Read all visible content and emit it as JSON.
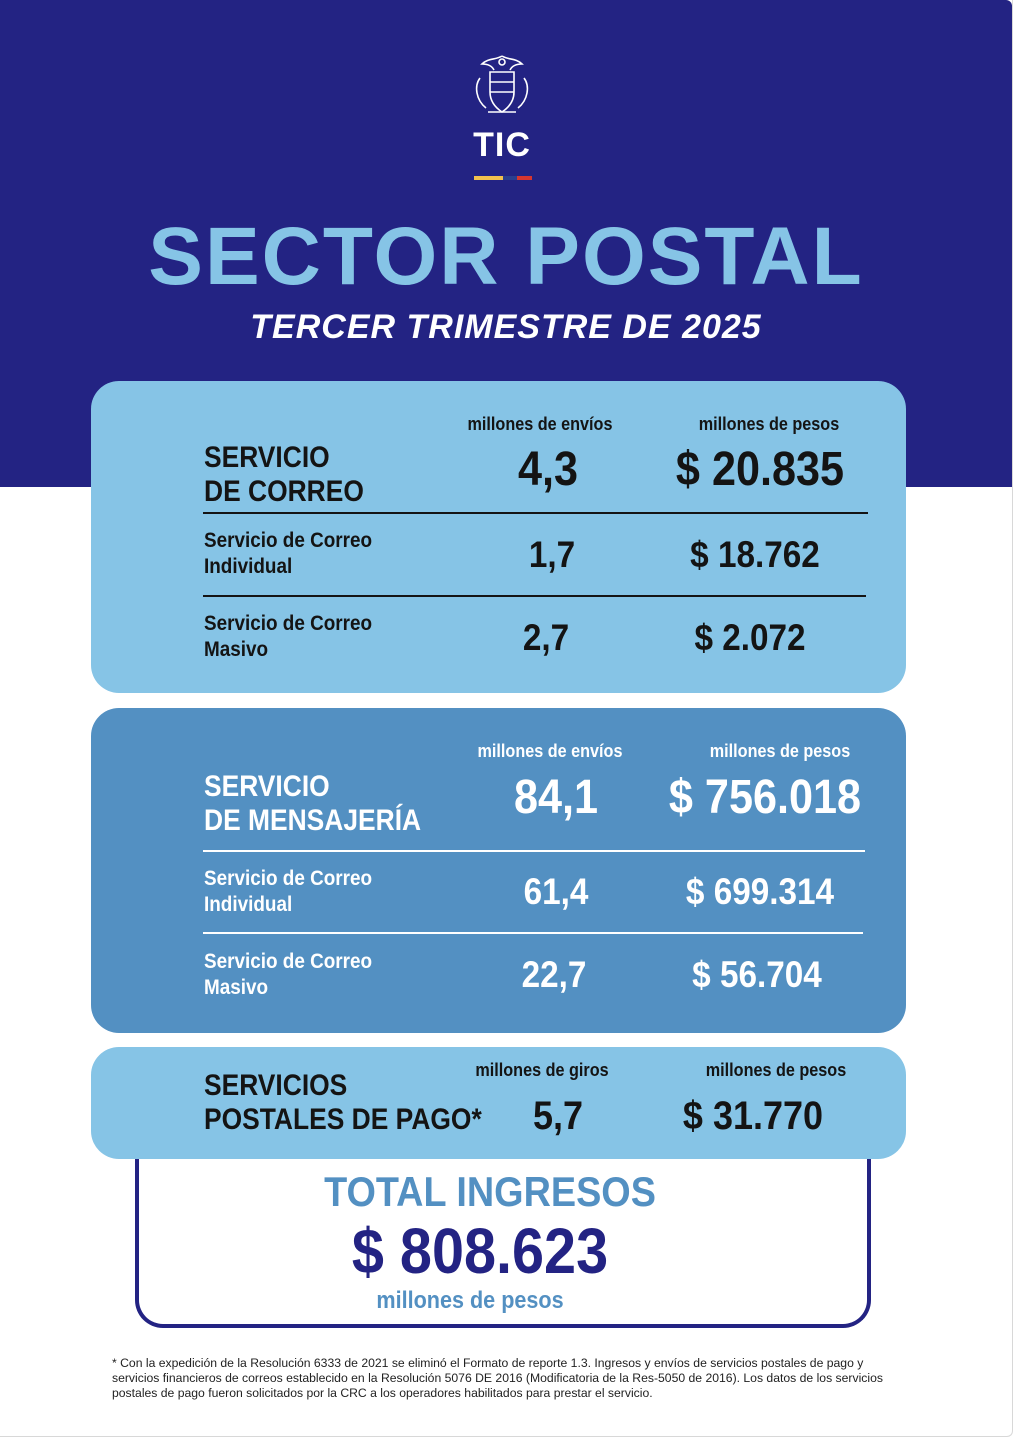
{
  "header": {
    "logo_text": "TIC",
    "title": "SECTOR POSTAL",
    "subtitle": "TERCER TRIMESTRE DE 2025"
  },
  "colors": {
    "navy": "#232383",
    "light_blue": "#86c4e6",
    "mid_blue": "#5390c2",
    "flag": [
      "#f2c14e",
      "#f2c14e",
      "#2a3f8f",
      "#d6362f"
    ]
  },
  "correo": {
    "col_envios": "millones de envíos",
    "col_pesos": "millones de pesos",
    "title_line1": "SERVICIO",
    "title_line2": "DE CORREO",
    "envios": "4,3",
    "pesos": "$ 20.835",
    "rows": [
      {
        "label1": "Servicio de Correo",
        "label2": "Individual",
        "envios": "1,7",
        "pesos": "$ 18.762"
      },
      {
        "label1": "Servicio de Correo",
        "label2": "Masivo",
        "envios": "2,7",
        "pesos": "$ 2.072"
      }
    ]
  },
  "mensajeria": {
    "col_envios": "millones de envíos",
    "col_pesos": "millones de pesos",
    "title_line1": "SERVICIO",
    "title_line2": "DE MENSAJERÍA",
    "envios": "84,1",
    "pesos": "$ 756.018",
    "rows": [
      {
        "label1": "Servicio de Correo",
        "label2": "Individual",
        "envios": "61,4",
        "pesos": "$ 699.314"
      },
      {
        "label1": "Servicio de Correo",
        "label2": "Masivo",
        "envios": "22,7",
        "pesos": "$ 56.704"
      }
    ]
  },
  "pago": {
    "col_giros": "millones de giros",
    "col_pesos": "millones de pesos",
    "title_line1": "SERVICIOS",
    "title_line2": "POSTALES DE PAGO*",
    "giros": "5,7",
    "pesos": "$ 31.770"
  },
  "total": {
    "label": "TOTAL INGRESOS",
    "value": "$ 808.623",
    "unit": "millones de pesos"
  },
  "footnote": "* Con la expedición de la Resolución 6333 de 2021 se eliminó el Formato de reporte 1.3. Ingresos y envíos de servicios postales de pago y servicios financieros de correos establecido en la Resolución 5076 DE 2016 (Modificatoria de la Res-5050 de 2016). Los datos de los servicios postales de pago fueron solicitados por la CRC a los operadores habilitados para prestar el servicio."
}
